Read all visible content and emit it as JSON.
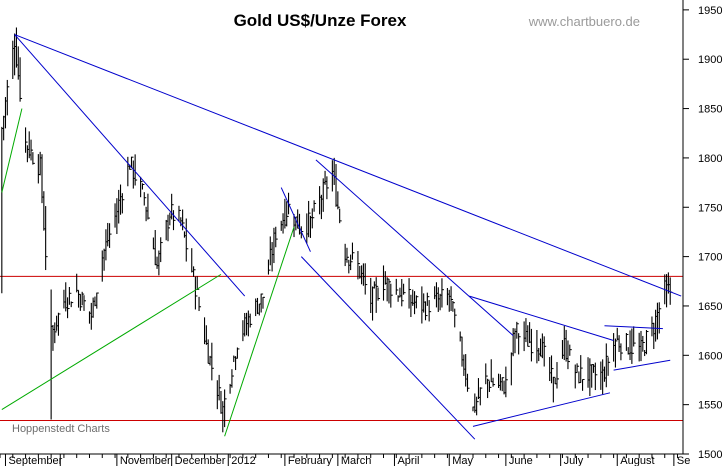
{
  "chart_data": {
    "type": "ohlc",
    "title": "Gold US$/Unze Forex",
    "watermark": "www.chartbuero.de",
    "source": "Hoppenstedt Charts",
    "ylim": [
      1500,
      1960
    ],
    "yticks": [
      1500,
      1550,
      1600,
      1650,
      1700,
      1750,
      1800,
      1850,
      1900,
      1950
    ],
    "ytick_labels": [
      "1500",
      "1550",
      "1600",
      "1650",
      "1700",
      "1750",
      "1800",
      "1850",
      "1900",
      "1950"
    ],
    "xlim": [
      "2011-08-29",
      "2012-09-06"
    ],
    "xticks": [
      {
        "date": "2011-09-01",
        "label": "September"
      },
      {
        "date": "2011-10-01",
        "label": ""
      },
      {
        "date": "2011-11-01",
        "label": "November"
      },
      {
        "date": "2011-12-01",
        "label": "December"
      },
      {
        "date": "2012-01-01",
        "label": "2012"
      },
      {
        "date": "2012-02-01",
        "label": "February"
      },
      {
        "date": "2012-03-01",
        "label": "March"
      },
      {
        "date": "2012-04-01",
        "label": "April"
      },
      {
        "date": "2012-05-01",
        "label": "May"
      },
      {
        "date": "2012-06-01",
        "label": "June"
      },
      {
        "date": "2012-07-01",
        "label": "July"
      },
      {
        "date": "2012-08-01",
        "label": "August"
      },
      {
        "date": "2012-09-01",
        "label": "Se"
      }
    ],
    "grid": false,
    "colors": {
      "bars": "#000000",
      "trend_blue": "#0000cc",
      "trend_green": "#00aa00",
      "support_red": "#cc0000"
    },
    "horizontal_lines": [
      {
        "y": 1680,
        "color": "#cc0000"
      },
      {
        "y": 1534,
        "color": "#cc0000"
      }
    ],
    "trend_lines": [
      {
        "color": "#0000cc",
        "from": [
          "2011-09-06",
          1925
        ],
        "to": [
          "2012-09-05",
          1660
        ]
      },
      {
        "color": "#0000cc",
        "from": [
          "2011-09-06",
          1925
        ],
        "to": [
          "2012-01-10",
          1660
        ]
      },
      {
        "color": "#0000cc",
        "from": [
          "2012-02-18",
          1798
        ],
        "to": [
          "2012-06-05",
          1620
        ]
      },
      {
        "color": "#0000cc",
        "from": [
          "2012-02-10",
          1700
        ],
        "to": [
          "2012-05-15",
          1515
        ]
      },
      {
        "color": "#0000cc",
        "from": [
          "2012-01-30",
          1770
        ],
        "to": [
          "2012-02-15",
          1705
        ]
      },
      {
        "color": "#0000cc",
        "from": [
          "2012-05-12",
          1660
        ],
        "to": [
          "2012-07-30",
          1615
        ]
      },
      {
        "color": "#0000cc",
        "from": [
          "2012-05-14",
          1528
        ],
        "to": [
          "2012-07-28",
          1562
        ]
      },
      {
        "color": "#0000cc",
        "from": [
          "2012-07-25",
          1630
        ],
        "to": [
          "2012-08-26",
          1627
        ]
      },
      {
        "color": "#0000cc",
        "from": [
          "2012-07-30",
          1585
        ],
        "to": [
          "2012-08-30",
          1595
        ]
      },
      {
        "color": "#00aa00",
        "from": [
          "2011-08-30",
          1765
        ],
        "to": [
          "2011-09-10",
          1850
        ]
      },
      {
        "color": "#00aa00",
        "from": [
          "2011-08-30",
          1545
        ],
        "to": [
          "2011-12-28",
          1682
        ]
      },
      {
        "color": "#00aa00",
        "from": [
          "2011-12-30",
          1518
        ],
        "to": [
          "2012-02-06",
          1730
        ]
      }
    ],
    "anchors": [
      [
        "2011-08-30",
        1830
      ],
      [
        "2011-09-06",
        1920
      ],
      [
        "2011-09-12",
        1815
      ],
      [
        "2011-09-20",
        1790
      ],
      [
        "2011-09-26",
        1620
      ],
      [
        "2011-10-03",
        1655
      ],
      [
        "2011-10-10",
        1665
      ],
      [
        "2011-10-18",
        1640
      ],
      [
        "2011-10-24",
        1700
      ],
      [
        "2011-10-31",
        1740
      ],
      [
        "2011-11-08",
        1795
      ],
      [
        "2011-11-16",
        1760
      ],
      [
        "2011-11-23",
        1690
      ],
      [
        "2011-11-30",
        1745
      ],
      [
        "2011-12-06",
        1735
      ],
      [
        "2011-12-14",
        1670
      ],
      [
        "2011-12-20",
        1610
      ],
      [
        "2011-12-29",
        1545
      ],
      [
        "2012-01-06",
        1615
      ],
      [
        "2012-01-13",
        1640
      ],
      [
        "2012-01-20",
        1660
      ],
      [
        "2012-01-27",
        1725
      ],
      [
        "2012-02-03",
        1750
      ],
      [
        "2012-02-09",
        1730
      ],
      [
        "2012-02-15",
        1735
      ],
      [
        "2012-02-22",
        1765
      ],
      [
        "2012-02-27",
        1785
      ],
      [
        "2012-03-05",
        1705
      ],
      [
        "2012-03-12",
        1690
      ],
      [
        "2012-03-19",
        1655
      ],
      [
        "2012-03-26",
        1675
      ],
      [
        "2012-04-02",
        1665
      ],
      [
        "2012-04-10",
        1655
      ],
      [
        "2012-04-17",
        1650
      ],
      [
        "2012-04-24",
        1655
      ],
      [
        "2012-05-01",
        1660
      ],
      [
        "2012-05-08",
        1600
      ],
      [
        "2012-05-14",
        1545
      ],
      [
        "2012-05-21",
        1575
      ],
      [
        "2012-05-28",
        1570
      ],
      [
        "2012-06-01",
        1570
      ],
      [
        "2012-06-06",
        1625
      ],
      [
        "2012-06-13",
        1615
      ],
      [
        "2012-06-20",
        1610
      ],
      [
        "2012-06-27",
        1570
      ],
      [
        "2012-07-03",
        1610
      ],
      [
        "2012-07-10",
        1580
      ],
      [
        "2012-07-17",
        1580
      ],
      [
        "2012-07-24",
        1580
      ],
      [
        "2012-07-31",
        1615
      ],
      [
        "2012-08-07",
        1610
      ],
      [
        "2012-08-14",
        1605
      ],
      [
        "2012-08-21",
        1630
      ],
      [
        "2012-08-27",
        1665
      ],
      [
        "2012-08-30",
        1665
      ]
    ],
    "spikes": [
      {
        "date": "2011-09-26",
        "low": 1535
      },
      {
        "date": "2011-12-29",
        "low": 1522
      }
    ]
  }
}
